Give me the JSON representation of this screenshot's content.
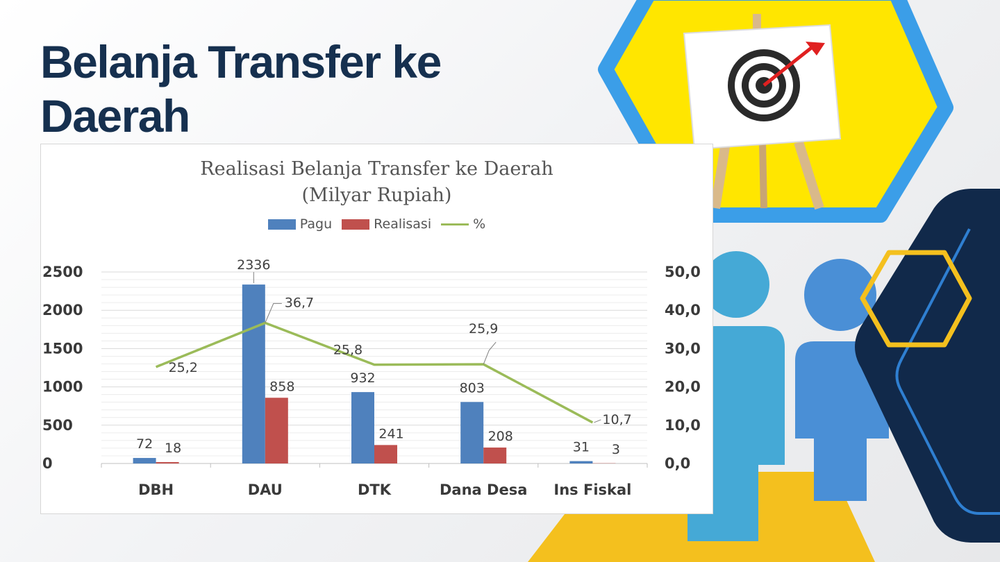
{
  "slide": {
    "title": "Belanja Transfer ke Daerah"
  },
  "decor": {
    "icons": [
      "target-board-icon",
      "person-icon",
      "person-icon",
      "hexagon-outline-icon"
    ],
    "colors": {
      "title": "#16304f",
      "hex_yellow": "#ffe600",
      "hex_blue": "#3b9ee8",
      "navy": "#11294a",
      "gold": "#f4c01e"
    }
  },
  "chart_data": {
    "type": "bar",
    "title": "Realisasi Belanja Transfer ke Daerah",
    "subtitle": "(Milyar Rupiah)",
    "categories": [
      "DBH",
      "DAU",
      "DTK",
      "Dana Desa",
      "Ins Fiskal"
    ],
    "series": [
      {
        "name": "Pagu",
        "type": "bar",
        "axis": "left",
        "color": "#4f81bd",
        "values": [
          72,
          2336,
          932,
          803,
          31
        ]
      },
      {
        "name": "Realisasi",
        "type": "bar",
        "axis": "left",
        "color": "#c0504d",
        "values": [
          18,
          858,
          241,
          208,
          3
        ]
      },
      {
        "name": "%",
        "type": "line",
        "axis": "right",
        "color": "#9bbb59",
        "values": [
          25.2,
          36.7,
          25.8,
          25.9,
          10.7
        ],
        "labels": [
          "25,2",
          "36,7",
          "25,8",
          "25,9",
          "10,7"
        ]
      }
    ],
    "y_left": {
      "min": 0,
      "max": 2500,
      "ticks": [
        "0",
        "500",
        "1000",
        "1500",
        "2000",
        "2500"
      ]
    },
    "y_right": {
      "min": 0,
      "max": 50,
      "ticks": [
        "0,0",
        "10,0",
        "20,0",
        "30,0",
        "40,0",
        "50,0"
      ]
    },
    "legend": "top",
    "grid": true
  }
}
